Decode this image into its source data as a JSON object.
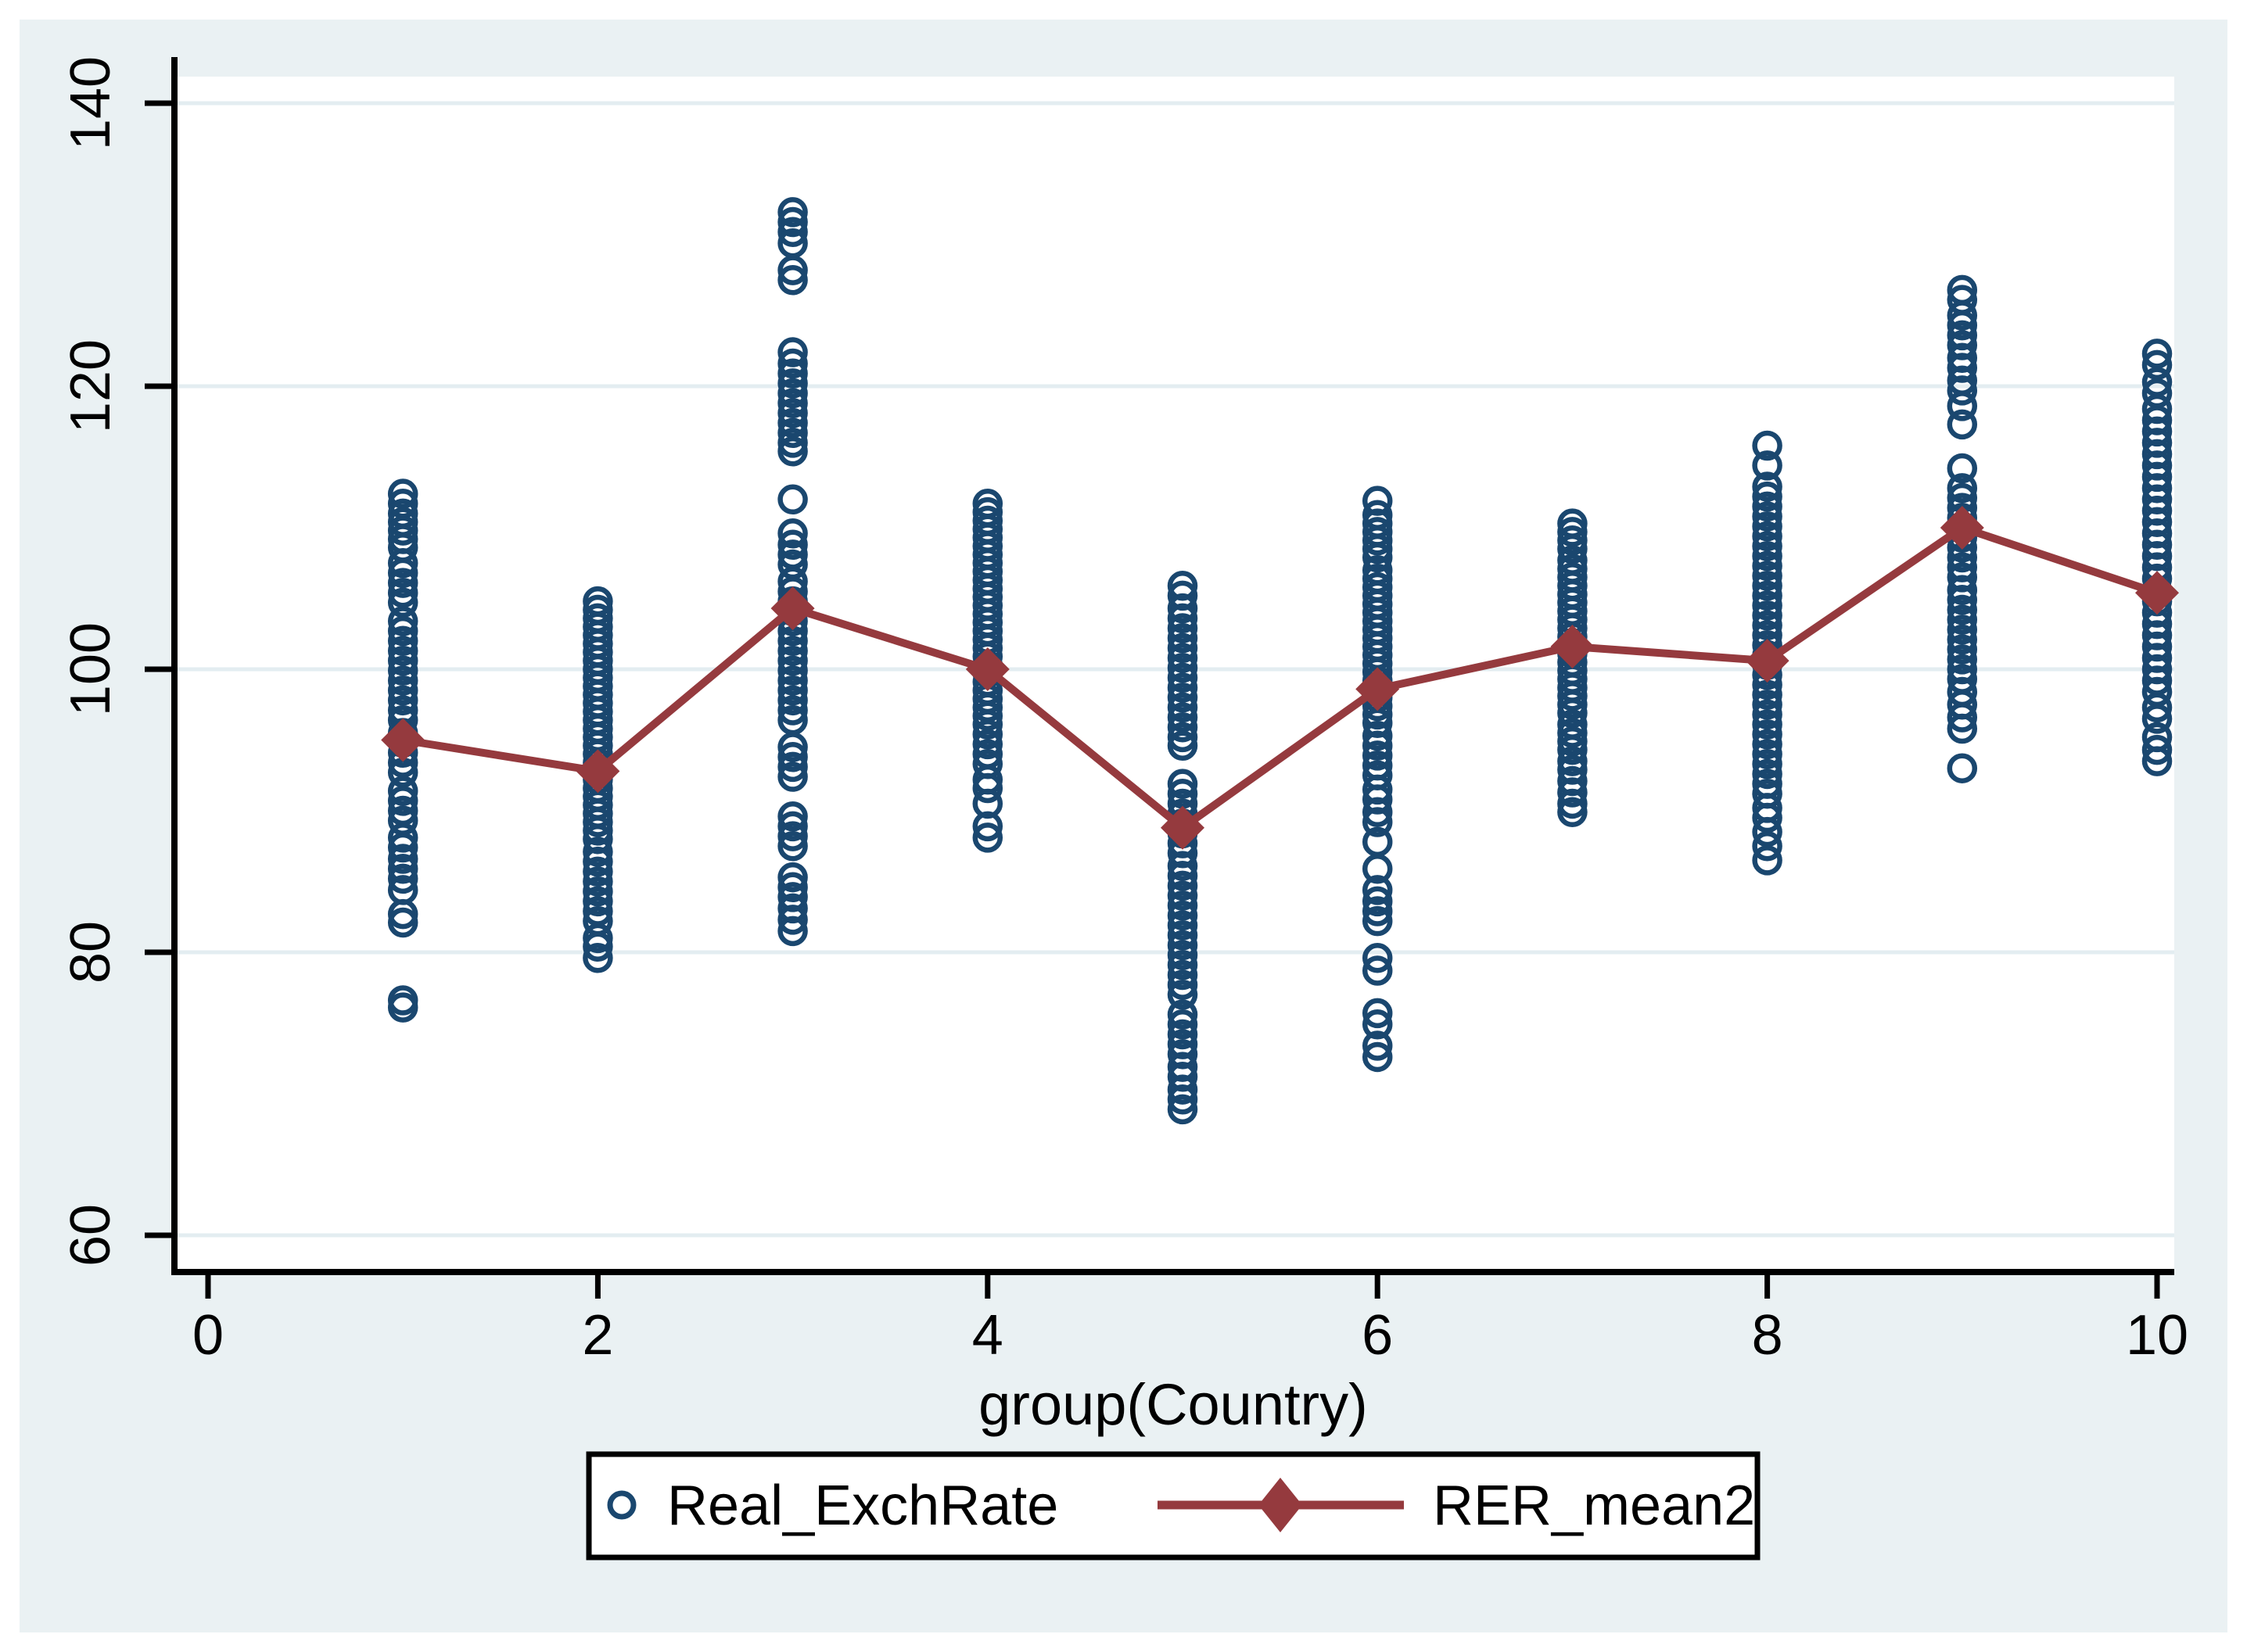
{
  "window": {
    "title": "Stata scatter graph"
  },
  "colors": {
    "background": "#eaf1f3",
    "plot_background": "#ffffff",
    "gridline": "#e3edf1",
    "axis": "#000000",
    "scatter_navy": "#1a476f",
    "line_maroon": "#953a3e",
    "legend_border": "#000000",
    "legend_background": "#ffffff"
  },
  "chart_data": {
    "type": "scatter",
    "title": "",
    "xlabel": "group(Country)",
    "ylabel": "",
    "xlim": [
      -0.2,
      10.1
    ],
    "ylim": [
      57.5,
      142.5
    ],
    "x_ticks": [
      0,
      2,
      4,
      6,
      8,
      10
    ],
    "y_ticks": [
      60,
      80,
      100,
      120,
      140
    ],
    "grid": "horizontal-only",
    "legend_position": "bottom-center",
    "series": [
      {
        "name": "Real_ExchRate",
        "type": "scatter",
        "marker": "hollow-circle",
        "color": "#1a476f",
        "groups": [
          {
            "x": 1,
            "values": [
              112.4,
              111.7,
              111.0,
              110.4,
              109.8,
              109.2,
              108.6,
              107.5,
              106.8,
              106.1,
              105.4,
              104.7,
              103.4,
              102.7,
              102.0,
              101.3,
              100.6,
              99.9,
              99.2,
              98.5,
              97.8,
              97.1,
              96.4,
              95.5,
              94.8,
              94.1,
              93.4,
              92.7,
              91.4,
              90.7,
              90.0,
              89.3,
              88.1,
              87.4,
              86.6,
              85.9,
              85.2,
              84.4,
              82.7,
              82.1,
              76.6,
              76.1
            ]
          },
          {
            "x": 2,
            "values": [
              104.8,
              104.2,
              103.6,
              103.0,
              102.4,
              101.8,
              101.2,
              100.6,
              100.0,
              99.4,
              98.8,
              98.2,
              97.6,
              97.0,
              96.4,
              95.8,
              95.2,
              94.6,
              94.0,
              93.4,
              92.8,
              92.2,
              91.6,
              91.0,
              90.4,
              89.8,
              89.2,
              88.6,
              88.0,
              87.1,
              86.4,
              85.7,
              85.0,
              84.3,
              83.6,
              82.9,
              82.2,
              81.0,
              80.4,
              79.6
            ]
          },
          {
            "x": 3,
            "values": [
              132.3,
              131.6,
              130.9,
              130.1,
              128.2,
              127.5,
              122.4,
              121.6,
              120.9,
              120.2,
              119.5,
              118.8,
              118.1,
              117.4,
              116.7,
              116.0,
              115.4,
              112.0,
              109.6,
              108.8,
              108.1,
              107.4,
              106.2,
              105.5,
              104.8,
              104.1,
              103.4,
              102.7,
              102.0,
              101.3,
              100.6,
              99.9,
              99.2,
              98.5,
              97.8,
              97.1,
              96.4,
              94.5,
              93.8,
              93.1,
              92.4,
              89.6,
              88.9,
              88.2,
              87.5,
              85.3,
              84.6,
              83.9,
              83.1,
              82.3,
              81.5
            ]
          },
          {
            "x": 4,
            "values": [
              111.7,
              111.1,
              110.5,
              109.9,
              109.3,
              108.7,
              108.1,
              107.5,
              106.9,
              106.3,
              105.7,
              105.1,
              104.5,
              103.9,
              103.3,
              102.7,
              102.1,
              101.5,
              100.9,
              100.3,
              99.7,
              99.1,
              98.5,
              97.9,
              97.3,
              96.7,
              96.1,
              95.4,
              94.7,
              94.0,
              93.3,
              92.2,
              91.6,
              90.5,
              88.9,
              88.1
            ]
          },
          {
            "x": 5,
            "values": [
              105.9,
              105.2,
              104.3,
              103.6,
              102.9,
              102.2,
              101.5,
              100.8,
              100.1,
              99.4,
              98.7,
              98.0,
              97.3,
              96.6,
              95.9,
              95.2,
              94.6,
              91.9,
              91.2,
              90.5,
              89.8,
              89.1,
              88.4,
              87.7,
              87.0,
              86.1,
              85.4,
              84.7,
              84.0,
              83.3,
              82.6,
              81.9,
              81.2,
              80.5,
              79.8,
              79.1,
              78.4,
              77.7,
              77.0,
              75.6,
              74.9,
              74.2,
              73.5,
              72.8,
              71.9,
              71.2,
              70.3,
              69.6,
              68.9
            ]
          },
          {
            "x": 6,
            "values": [
              111.9,
              110.9,
              110.3,
              109.7,
              109.1,
              108.5,
              107.9,
              107.0,
              106.4,
              105.8,
              105.2,
              104.6,
              104.0,
              103.4,
              102.8,
              102.2,
              101.6,
              101.0,
              100.4,
              99.8,
              99.2,
              98.6,
              98.0,
              97.4,
              96.8,
              96.2,
              95.3,
              94.6,
              93.9,
              93.2,
              92.5,
              91.5,
              90.8,
              89.9,
              89.2,
              87.8,
              85.9,
              84.4,
              83.6,
              82.9,
              82.2,
              79.6,
              78.7,
              75.7,
              74.9,
              73.4,
              72.6
            ]
          },
          {
            "x": 7,
            "values": [
              110.3,
              109.7,
              109.1,
              108.5,
              107.7,
              107.1,
              106.5,
              105.9,
              105.3,
              104.7,
              104.1,
              103.5,
              102.9,
              102.3,
              101.7,
              101.1,
              100.5,
              99.9,
              99.3,
              98.7,
              98.1,
              97.5,
              96.9,
              96.1,
              95.5,
              94.9,
              94.3,
              93.5,
              92.9,
              92.1,
              91.3,
              90.5,
              89.9
            ]
          },
          {
            "x": 8,
            "values": [
              115.8,
              114.4,
              112.9,
              112.2,
              111.5,
              110.8,
              110.1,
              109.4,
              108.7,
              108.0,
              107.3,
              106.6,
              105.9,
              105.2,
              104.5,
              103.8,
              103.1,
              102.4,
              101.7,
              101.0,
              100.3,
              99.6,
              98.9,
              98.2,
              97.5,
              96.8,
              96.1,
              95.4,
              94.7,
              94.0,
              93.3,
              92.6,
              91.9,
              91.2,
              90.2,
              89.5,
              88.5,
              87.5,
              86.5
            ]
          },
          {
            "x": 9,
            "values": [
              126.8,
              126.1,
              125.0,
              124.3,
              123.6,
              122.9,
              122.0,
              121.3,
              120.4,
              119.7,
              118.6,
              117.3,
              114.2,
              112.8,
              112.1,
              111.4,
              110.7,
              110.0,
              109.3,
              108.6,
              107.9,
              107.2,
              106.5,
              105.6,
              104.9,
              104.2,
              103.5,
              102.8,
              102.1,
              101.4,
              100.7,
              100.0,
              99.3,
              98.4,
              97.5,
              96.6,
              95.8,
              93.0
            ]
          },
          {
            "x": 10,
            "values": [
              122.3,
              121.5,
              120.3,
              119.5,
              118.4,
              117.6,
              116.8,
              116.0,
              115.2,
              114.4,
              113.6,
              112.8,
              112.0,
              111.2,
              110.4,
              109.6,
              108.8,
              108.0,
              107.2,
              106.4,
              105.6,
              104.8,
              104.0,
              103.2,
              102.4,
              101.6,
              100.8,
              100.0,
              99.2,
              98.4,
              97.3,
              96.5,
              95.2,
              94.3,
              93.5
            ]
          }
        ]
      },
      {
        "name": "RER_mean2",
        "type": "line",
        "marker": "filled-diamond",
        "color": "#953a3e",
        "x": [
          1,
          2,
          3,
          4,
          5,
          6,
          7,
          8,
          9,
          10
        ],
        "values": [
          95.0,
          92.8,
          104.3,
          100.0,
          88.8,
          98.6,
          101.6,
          100.6,
          110.0,
          105.4
        ]
      }
    ]
  },
  "legend": {
    "items": [
      {
        "label": "Real_ExchRate",
        "marker": "hollow-circle"
      },
      {
        "label": "RER_mean2",
        "marker": "line-with-diamond"
      }
    ]
  }
}
